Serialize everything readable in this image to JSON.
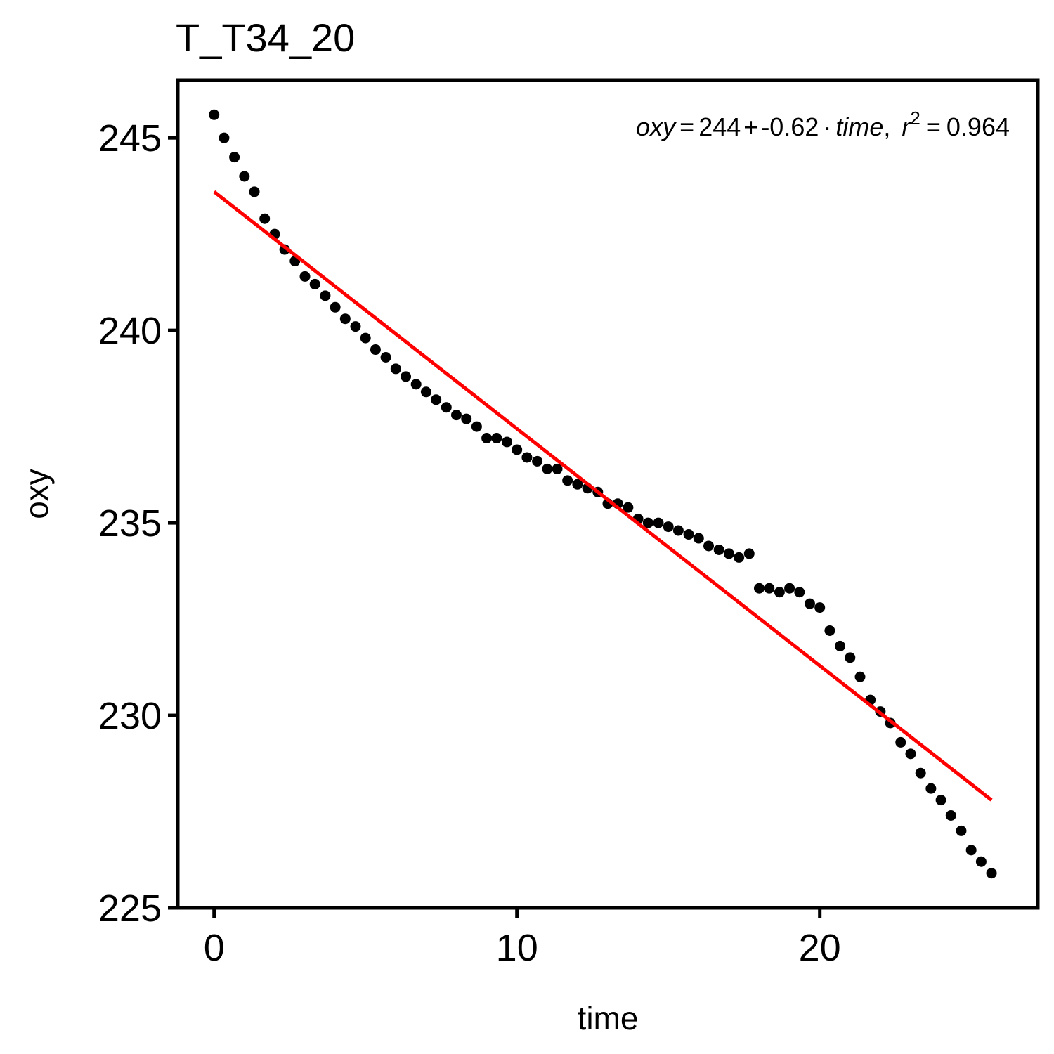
{
  "chart_data": {
    "type": "scatter",
    "title": "T_T34_20",
    "xlabel": "time",
    "ylabel": "oxy",
    "xlim": [
      -1.2,
      27.2
    ],
    "ylim": [
      225,
      246.5
    ],
    "x_ticks": [
      0,
      10,
      20
    ],
    "x_tick_labels": [
      "0",
      "10",
      "20"
    ],
    "y_ticks": [
      225,
      230,
      235,
      240,
      245
    ],
    "y_tick_labels": [
      "225",
      "230",
      "235",
      "240",
      "245"
    ],
    "grid": false,
    "legend": "none",
    "points": {
      "x": [
        0.0,
        0.33,
        0.67,
        1.0,
        1.33,
        1.67,
        2.0,
        2.33,
        2.67,
        3.0,
        3.33,
        3.67,
        4.0,
        4.33,
        4.67,
        5.0,
        5.33,
        5.67,
        6.0,
        6.33,
        6.67,
        7.0,
        7.33,
        7.67,
        8.0,
        8.33,
        8.67,
        9.0,
        9.33,
        9.67,
        10.0,
        10.33,
        10.67,
        11.0,
        11.33,
        11.67,
        12.0,
        12.33,
        12.67,
        13.0,
        13.33,
        13.67,
        14.0,
        14.33,
        14.67,
        15.0,
        15.33,
        15.67,
        16.0,
        16.33,
        16.67,
        17.0,
        17.33,
        17.67,
        18.0,
        18.33,
        18.67,
        19.0,
        19.33,
        19.67,
        20.0,
        20.33,
        20.67,
        21.0,
        21.33,
        21.67,
        22.0,
        22.33,
        22.67,
        23.0,
        23.33,
        23.67,
        24.0,
        24.33,
        24.67,
        25.0,
        25.33,
        25.67
      ],
      "y": [
        245.6,
        245.0,
        244.5,
        244.0,
        243.6,
        242.9,
        242.5,
        242.1,
        241.8,
        241.4,
        241.2,
        240.9,
        240.6,
        240.3,
        240.1,
        239.8,
        239.5,
        239.3,
        239.0,
        238.8,
        238.6,
        238.4,
        238.2,
        238.0,
        237.8,
        237.7,
        237.5,
        237.2,
        237.2,
        237.1,
        236.9,
        236.7,
        236.6,
        236.4,
        236.4,
        236.1,
        236.0,
        235.9,
        235.8,
        235.5,
        235.5,
        235.4,
        235.1,
        235.0,
        235.0,
        234.9,
        234.8,
        234.7,
        234.6,
        234.4,
        234.3,
        234.2,
        234.1,
        234.2,
        233.3,
        233.3,
        233.2,
        233.3,
        233.2,
        232.9,
        232.8,
        232.2,
        231.8,
        231.5,
        231.0,
        230.4,
        230.1,
        229.8,
        229.3,
        229.0,
        228.5,
        228.1,
        227.8,
        227.4,
        227.0,
        226.5,
        226.2,
        225.9
      ]
    },
    "fit_line": {
      "intercept": 243.6,
      "slope": -0.6155,
      "x_range": [
        0.0,
        25.67
      ],
      "color": "#FF0000"
    },
    "annotation": {
      "lhs": "oxy",
      "eq": "=",
      "intercept": "244",
      "plus": "+",
      "slope": "-0.62",
      "dot": "·",
      "var": "time",
      "comma": ",",
      "r": "r",
      "r_exp": "2",
      "r_eq": "=",
      "r2": "0.964"
    },
    "point_color": "#000000"
  }
}
